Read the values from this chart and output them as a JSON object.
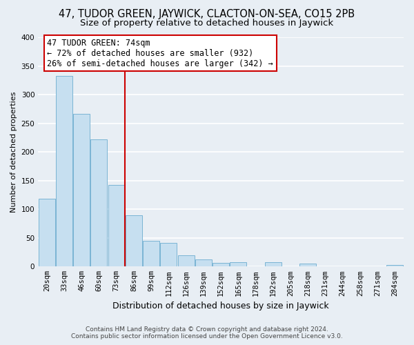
{
  "title": "47, TUDOR GREEN, JAYWICK, CLACTON-ON-SEA, CO15 2PB",
  "subtitle": "Size of property relative to detached houses in Jaywick",
  "xlabel": "Distribution of detached houses by size in Jaywick",
  "ylabel": "Number of detached properties",
  "bar_labels": [
    "20sqm",
    "33sqm",
    "46sqm",
    "60sqm",
    "73sqm",
    "86sqm",
    "99sqm",
    "112sqm",
    "126sqm",
    "139sqm",
    "152sqm",
    "165sqm",
    "178sqm",
    "192sqm",
    "205sqm",
    "218sqm",
    "231sqm",
    "244sqm",
    "258sqm",
    "271sqm",
    "284sqm"
  ],
  "bar_values": [
    118,
    332,
    266,
    222,
    142,
    90,
    45,
    41,
    20,
    12,
    6,
    8,
    0,
    8,
    0,
    5,
    0,
    0,
    0,
    0,
    3
  ],
  "bar_color": "#c6dff0",
  "bar_edge_color": "#7ab4d4",
  "vline_color": "#cc0000",
  "vline_x_index": 4,
  "annotation_title": "47 TUDOR GREEN: 74sqm",
  "annotation_line1": "← 72% of detached houses are smaller (932)",
  "annotation_line2": "26% of semi-detached houses are larger (342) →",
  "annotation_box_color": "white",
  "annotation_box_edge": "#cc0000",
  "footer_line1": "Contains HM Land Registry data © Crown copyright and database right 2024.",
  "footer_line2": "Contains public sector information licensed under the Open Government Licence v3.0.",
  "ylim": [
    0,
    400
  ],
  "yticks": [
    0,
    50,
    100,
    150,
    200,
    250,
    300,
    350,
    400
  ],
  "background_color": "#e8eef4",
  "grid_color": "white",
  "title_fontsize": 10.5,
  "subtitle_fontsize": 9.5,
  "xlabel_fontsize": 9,
  "ylabel_fontsize": 8,
  "tick_fontsize": 7.5,
  "footer_fontsize": 6.5,
  "ann_fontsize": 8.5
}
